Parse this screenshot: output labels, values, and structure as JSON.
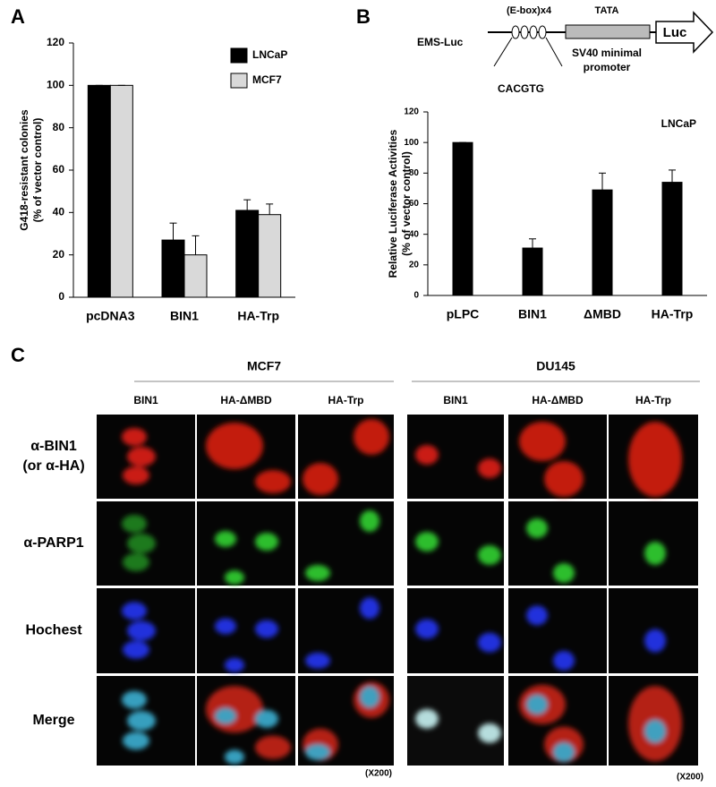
{
  "chart_data": [
    {
      "type": "bar",
      "panel": "A",
      "ylabel": [
        "G418-resistant colonies",
        "(% of vector control)"
      ],
      "categories": [
        "pcDNA3",
        "BIN1",
        "HA-Trp"
      ],
      "series": [
        {
          "name": "LNCaP",
          "color": "#000000",
          "values": [
            100,
            27,
            41
          ],
          "errors": [
            0,
            8,
            5
          ]
        },
        {
          "name": "MCF7",
          "color": "#d9d9d9",
          "values": [
            100,
            20,
            39
          ],
          "errors": [
            0,
            9,
            5
          ]
        }
      ],
      "ylim": [
        0,
        120
      ],
      "yticks": [
        0,
        20,
        40,
        60,
        80,
        100,
        120
      ],
      "grid": false,
      "legend": "top-right"
    },
    {
      "type": "bar",
      "panel": "B",
      "ylabel": [
        "Relative Luciferase Activities",
        "(% of vector control)"
      ],
      "annotation": "LNCaP",
      "categories": [
        "pLPC",
        "BIN1",
        "ΔMBD",
        "HA-Trp"
      ],
      "values": [
        100,
        31,
        69,
        74
      ],
      "errors": [
        0,
        6,
        11,
        8
      ],
      "color": "#000000",
      "ylim": [
        0,
        120
      ],
      "yticks": [
        0,
        20,
        40,
        60,
        80,
        100,
        120
      ],
      "grid": false
    }
  ],
  "construct": {
    "name": "EMS-Luc",
    "ebox": "(E-box)x4",
    "tata": "TATA",
    "reporter": "Luc",
    "promoter": [
      "SV40 minimal",
      "promoter"
    ],
    "sequence": "CACGTG"
  },
  "panel_c": {
    "panel": "C",
    "groups": [
      {
        "name": "MCF7",
        "columns": [
          "BIN1",
          "HA-ΔMBD",
          "HA-Trp"
        ],
        "magnification": "(X200)"
      },
      {
        "name": "DU145",
        "columns": [
          "BIN1",
          "HA-ΔMBD",
          "HA-Trp"
        ],
        "magnification": "(X200)"
      }
    ],
    "rows": [
      [
        "α-BIN1",
        "(or α-HA)"
      ],
      [
        "α-PARP1"
      ],
      [
        "Hochest"
      ],
      [
        "Merge"
      ]
    ]
  }
}
